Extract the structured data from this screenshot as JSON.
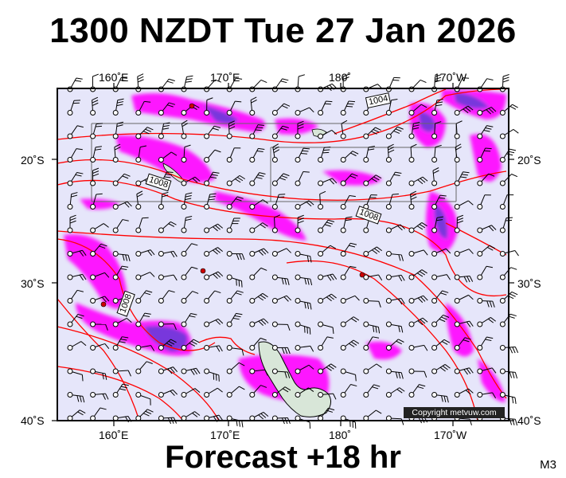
{
  "title": "1300 NZDT Tue 27 Jan 2026",
  "footer": "Forecast +18 hr",
  "model_code": "M3",
  "copyright": "Copyright metvuw.com",
  "longitude_labels": [
    "160˚E",
    "170˚E",
    "180˚",
    "170˚W"
  ],
  "latitude_labels": [
    "20˚S",
    "30˚S",
    "40˚S"
  ],
  "isobar_labels": [
    "1004",
    "1008",
    "1008",
    "1008"
  ],
  "colors": {
    "background": "#e6e6fa",
    "isobar": "#ff0000",
    "precip_light": "#ff00ff",
    "precip_heavy": "#6a3ad8",
    "land": "#d8e6d8"
  }
}
